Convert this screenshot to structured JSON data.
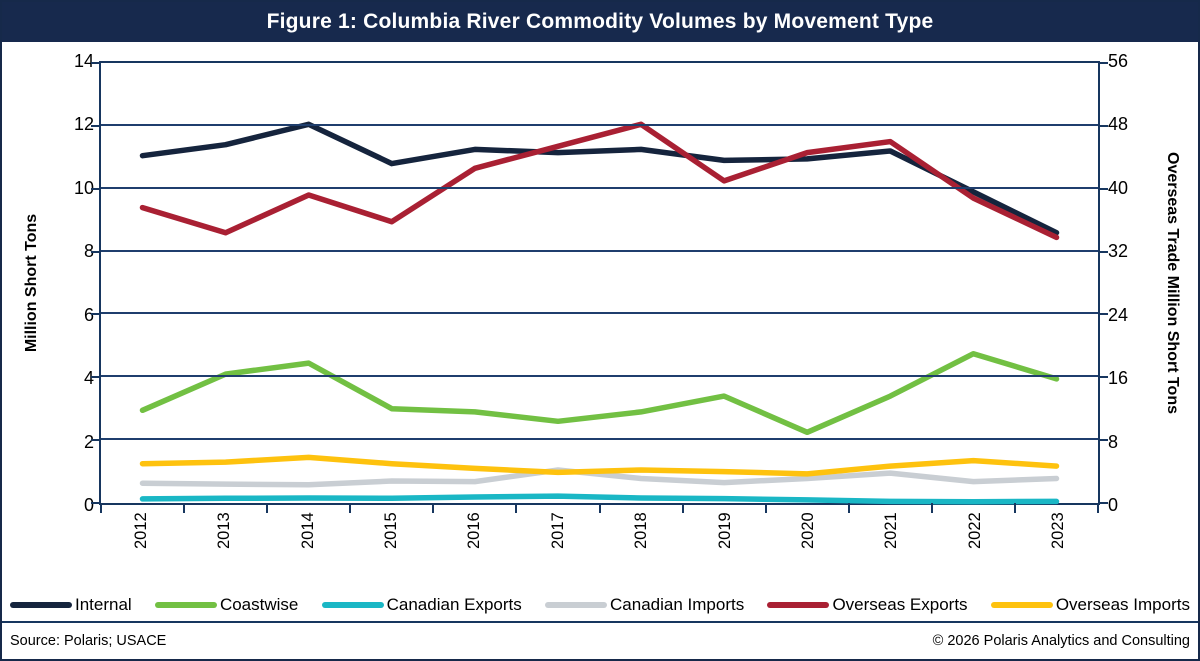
{
  "title": "Figure 1: Columbia River Commodity Volumes by Movement Type",
  "footer": {
    "source": "Source: Polaris; USACE",
    "copyright": "© 2026 Polaris Analytics and Consulting"
  },
  "colors": {
    "frame_navy": "#17294d",
    "grid_navy": "#1f3e6d",
    "title_text": "#ffffff"
  },
  "chart_data": {
    "type": "line",
    "title": "Figure 1: Columbia River Commodity Volumes by Movement Type",
    "categories": [
      "2012",
      "2013",
      "2014",
      "2015",
      "2016",
      "2017",
      "2018",
      "2019",
      "2020",
      "2021",
      "2022",
      "2023"
    ],
    "left_axis": {
      "label": "Million Short Tons",
      "min": 0,
      "max": 14,
      "step": 2
    },
    "right_axis": {
      "label": "Overseas Trade Million Short Tons",
      "min": 0,
      "max": 56,
      "step": 8
    },
    "grid": true,
    "legend_position": "bottom",
    "series": [
      {
        "name": "Internal",
        "axis": "left",
        "color": "#15243d",
        "values": [
          11.05,
          11.4,
          12.05,
          10.8,
          11.25,
          11.15,
          11.25,
          10.9,
          10.95,
          11.2,
          9.9,
          8.6
        ]
      },
      {
        "name": "Coastwise",
        "axis": "left",
        "color": "#72c043",
        "values": [
          2.95,
          4.1,
          4.45,
          3.0,
          2.9,
          2.6,
          2.9,
          3.4,
          2.25,
          3.4,
          4.75,
          3.95
        ]
      },
      {
        "name": "Canadian Exports",
        "axis": "left",
        "color": "#1ab7c5",
        "values": [
          0.13,
          0.15,
          0.16,
          0.15,
          0.19,
          0.22,
          0.16,
          0.14,
          0.1,
          0.05,
          0.04,
          0.05
        ]
      },
      {
        "name": "Canadian Imports",
        "axis": "left",
        "color": "#c9ced3",
        "values": [
          0.63,
          0.6,
          0.58,
          0.7,
          0.68,
          1.05,
          0.78,
          0.65,
          0.78,
          0.95,
          0.68,
          0.78
        ]
      },
      {
        "name": "Overseas Exports",
        "axis": "right",
        "color": "#a92033",
        "values": [
          37.6,
          34.4,
          39.2,
          35.8,
          42.6,
          45.4,
          48.2,
          41.0,
          44.6,
          46.0,
          38.8,
          33.8
        ]
      },
      {
        "name": "Overseas Imports",
        "axis": "right",
        "color": "#fec20e",
        "values": [
          5.0,
          5.2,
          5.8,
          5.0,
          4.4,
          3.9,
          4.2,
          4.0,
          3.7,
          4.7,
          5.4,
          4.7
        ]
      }
    ]
  }
}
